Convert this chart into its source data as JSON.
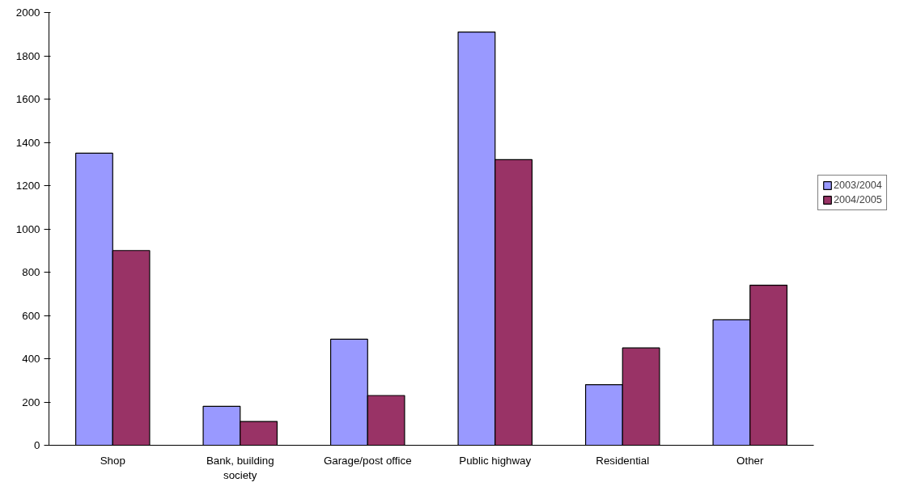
{
  "chart_data": {
    "type": "bar",
    "categories": [
      "Shop",
      "Bank, building society",
      "Garage/post office",
      "Public highway",
      "Residential",
      "Other"
    ],
    "series": [
      {
        "name": "2003/2004",
        "color": "#9999ff",
        "values": [
          1350,
          180,
          490,
          1910,
          280,
          580
        ]
      },
      {
        "name": "2004/2005",
        "color": "#993366",
        "values": [
          900,
          110,
          230,
          1320,
          450,
          740
        ]
      }
    ],
    "ylim": [
      0,
      2000
    ],
    "yticks": [
      0,
      200,
      400,
      600,
      800,
      1000,
      1200,
      1400,
      1600,
      1800,
      2000
    ],
    "grid": false,
    "legend": "right"
  }
}
